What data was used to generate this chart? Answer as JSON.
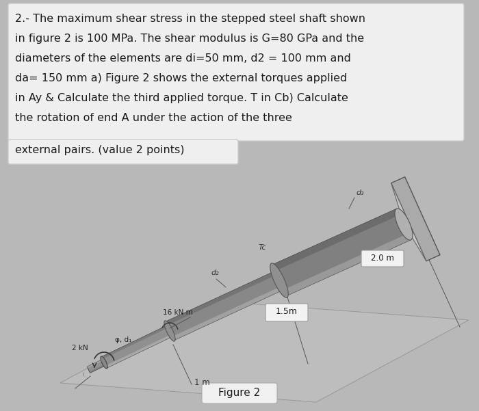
{
  "background_color": "#b8b8b8",
  "text_box_color": "#efefef",
  "text_box_edge_color": "#cccccc",
  "main_text_lines": [
    "2.- The maximum shear stress in the stepped steel shaft shown",
    "in figure 2 is 100 MPa. The shear modulus is G=80 GPa and the",
    "diameters of the elements are di=50 mm, d2 = 100 mm and",
    "da= 150 mm a) Figure 2 shows the external torques applied",
    "in Ay & Calculate the third applied torque. T in Cb) Calculate",
    "the rotation of end A under the action of the three"
  ],
  "second_text_line": "external pairs. (value 2 points)",
  "figure_label": "Figure 2",
  "label_1p5m": "1.5m",
  "label_1m": "1 m",
  "label_2m": "2.0 m",
  "label_16kNm": "16 kN m",
  "label_3kN": "2 kN",
  "label_Tc": "Tc",
  "label_d1": "d₁",
  "label_d2": "d₂",
  "label_d3": "d₃",
  "label_phi_d1": "φ, d₁",
  "text_fontsize": 11.5,
  "label_fontsize": 8
}
